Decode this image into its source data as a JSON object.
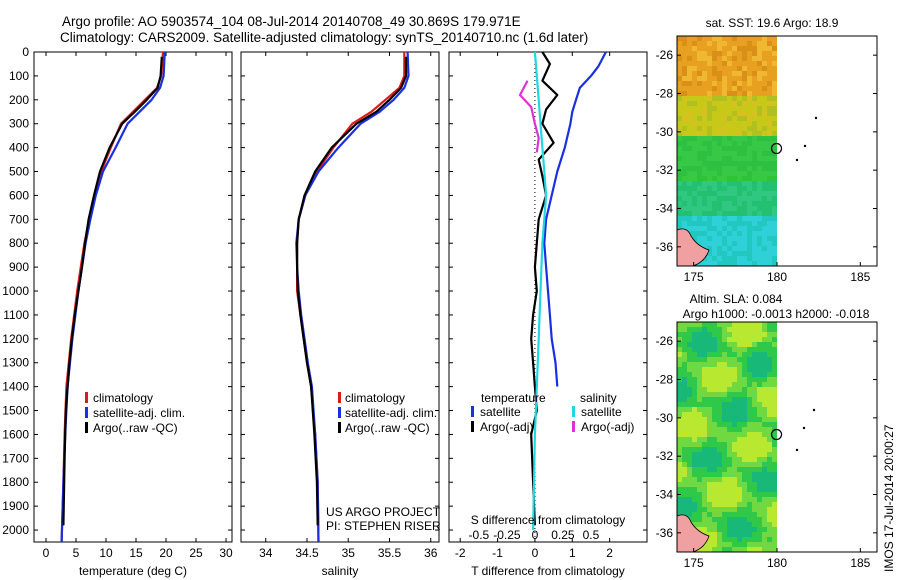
{
  "header": {
    "line1": "Argo profile: AO 5903574_104 08-Jul-2014 20140708_49 30.869S 179.971E",
    "line2": "Climatology: CARS2009. Satellite-adjusted climatology: synTS_20140710.nc (1.6d later)"
  },
  "colors": {
    "clim": "#dd1a1a",
    "sat": "#1a2fe0",
    "argo": "#000000",
    "sat_s": "#20d8e0",
    "argo_s": "#e030d8"
  },
  "credits": {
    "project": "US ARGO PROJECT",
    "pi": "PI: STEPHEN RISER"
  },
  "side_label": "IMOS 17-Jul-2014 20:00:27",
  "chart_data": [
    {
      "type": "line",
      "xlabel": "temperature (deg C)",
      "ylabel": "",
      "xlim": [
        -2,
        31
      ],
      "ylim": [
        2050,
        0
      ],
      "xticks": [
        0,
        5,
        10,
        15,
        20,
        25,
        30
      ],
      "yticks": [
        0,
        100,
        200,
        300,
        400,
        500,
        600,
        700,
        800,
        900,
        1000,
        1100,
        1200,
        1300,
        1400,
        1500,
        1600,
        1700,
        1800,
        1900,
        2000
      ],
      "legend": [
        "climatology",
        "satellite-adj. clim.",
        "Argo(..raw -QC)"
      ],
      "series": [
        {
          "name": "climatology",
          "color": "clim",
          "x": [
            19.5,
            19.2,
            18.5,
            16.5,
            14.5,
            12.5,
            10.8,
            9.2,
            8.1,
            7.2,
            6.4,
            5.8,
            5.2,
            4.7,
            4.2,
            3.8,
            3.4,
            3.1,
            2.9,
            2.6
          ],
          "y": [
            0,
            100,
            150,
            200,
            250,
            300,
            400,
            500,
            600,
            700,
            800,
            900,
            1000,
            1100,
            1200,
            1300,
            1400,
            1600,
            1800,
            2050
          ]
        },
        {
          "name": "satellite-adj. clim.",
          "color": "sat",
          "x": [
            19.8,
            19.6,
            19.0,
            17.6,
            15.6,
            13.6,
            11.6,
            9.5,
            8.3,
            7.4,
            6.6,
            6.0,
            5.4,
            4.9,
            4.4,
            4.0,
            3.6,
            3.2,
            2.9,
            2.6
          ],
          "y": [
            0,
            100,
            150,
            200,
            250,
            300,
            400,
            500,
            600,
            700,
            800,
            900,
            1000,
            1100,
            1200,
            1300,
            1400,
            1600,
            1800,
            2050
          ]
        },
        {
          "name": "Argo(..raw -QC)",
          "color": "argo",
          "x": [
            19.3,
            19.1,
            18.6,
            16.8,
            14.8,
            12.7,
            10.6,
            9.0,
            8.0,
            7.1,
            6.5,
            6.0,
            5.4,
            4.8,
            4.3,
            3.9,
            3.6,
            3.3,
            3.1,
            2.9
          ],
          "y": [
            20,
            100,
            150,
            200,
            250,
            300,
            400,
            500,
            600,
            700,
            800,
            900,
            1000,
            1100,
            1200,
            1300,
            1400,
            1500,
            1700,
            1980
          ]
        }
      ]
    },
    {
      "type": "line",
      "xlabel": "salinity",
      "xlim": [
        33.7,
        36.1
      ],
      "ylim": [
        2050,
        0
      ],
      "xticks": [
        34,
        34.5,
        35,
        35.5,
        36
      ],
      "legend": [
        "climatology",
        "satellite-adj. clim.",
        "Argo(..raw -QC)"
      ],
      "series": [
        {
          "name": "climatology",
          "color": "clim",
          "x": [
            35.68,
            35.68,
            35.62,
            35.45,
            35.28,
            35.05,
            34.82,
            34.62,
            34.48,
            34.4,
            34.38,
            34.38,
            34.38,
            34.42,
            34.46,
            34.5,
            34.55,
            34.6,
            34.63,
            34.64
          ],
          "y": [
            0,
            100,
            150,
            200,
            250,
            300,
            400,
            500,
            600,
            700,
            800,
            900,
            1000,
            1100,
            1200,
            1300,
            1400,
            1600,
            1800,
            2050
          ]
        },
        {
          "name": "satellite-adj. clim.",
          "color": "sat",
          "x": [
            35.72,
            35.73,
            35.68,
            35.55,
            35.38,
            35.15,
            34.88,
            34.64,
            34.48,
            34.4,
            34.37,
            34.38,
            34.4,
            34.43,
            34.47,
            34.51,
            34.56,
            34.6,
            34.63,
            34.64
          ],
          "y": [
            0,
            100,
            150,
            200,
            250,
            300,
            400,
            500,
            600,
            700,
            800,
            900,
            1000,
            1100,
            1200,
            1300,
            1400,
            1600,
            1800,
            2050
          ]
        },
        {
          "name": "Argo(..raw -QC)",
          "color": "argo",
          "x": [
            35.7,
            35.7,
            35.64,
            35.5,
            35.34,
            35.1,
            34.8,
            34.6,
            34.47,
            34.4,
            34.38,
            34.38,
            34.39,
            34.42,
            34.46,
            34.5,
            34.55,
            34.59,
            34.62,
            34.63
          ],
          "y": [
            20,
            100,
            150,
            200,
            250,
            300,
            400,
            500,
            600,
            700,
            800,
            900,
            1000,
            1100,
            1200,
            1300,
            1400,
            1600,
            1800,
            1980
          ]
        }
      ]
    },
    {
      "type": "line",
      "xlabel": "T difference from climatology",
      "xlabel_top": "S difference from climatology",
      "xlim": [
        -2.3,
        3.0
      ],
      "ylim": [
        2050,
        0
      ],
      "xticks": [
        -2,
        -1,
        0,
        1,
        2
      ],
      "xticks_s_labels": [
        "-0.5",
        "-0.25",
        "0",
        "0.25",
        "0.5"
      ],
      "xticks_s_pos": [
        -1.5,
        -0.75,
        0,
        0.75,
        1.5
      ],
      "legend_titles": [
        "temperature",
        "salinity"
      ],
      "legend": [
        "satellite",
        "Argo(-adj)",
        "satellite",
        "Argo(-adj)"
      ],
      "series": [
        {
          "name": "satellite",
          "color": "sat",
          "x": [
            1.9,
            1.7,
            1.5,
            1.2,
            1.1,
            1.0,
            0.95,
            0.8,
            0.6,
            0.45,
            0.3,
            0.25,
            0.3,
            0.35,
            0.4,
            0.45,
            0.55,
            0.6
          ],
          "y": [
            0,
            60,
            100,
            150,
            200,
            250,
            300,
            400,
            500,
            600,
            700,
            800,
            900,
            1000,
            1100,
            1200,
            1300,
            1400
          ]
        },
        {
          "name": "Argo(-adj)",
          "color": "argo",
          "x": [
            0.2,
            0.4,
            0.2,
            0.6,
            0.3,
            0.2,
            0.5,
            0.1,
            0.2,
            0.3,
            0.1,
            0.05,
            0.0,
            0.05,
            -0.05,
            -0.1,
            -0.05,
            0.0,
            0.05,
            -0.1,
            -0.05,
            0.0
          ],
          "y": [
            0,
            50,
            120,
            180,
            240,
            300,
            380,
            450,
            520,
            600,
            700,
            800,
            900,
            1000,
            1100,
            1200,
            1300,
            1400,
            1500,
            1600,
            1800,
            1980
          ]
        },
        {
          "name": "satellite",
          "color": "sat_s",
          "x": [
            0.0,
            0.05,
            0.1,
            0.15,
            0.2,
            0.25,
            0.3,
            0.2,
            0.15,
            0.1,
            0.05,
            0.0,
            -0.05
          ],
          "y": [
            0,
            100,
            200,
            300,
            400,
            500,
            600,
            800,
            1000,
            1200,
            1400,
            1600,
            2000
          ]
        },
        {
          "name": "Argo(-adj)",
          "color": "argo_s",
          "x": [
            -0.2,
            -0.4,
            -0.1,
            0.0,
            0.1,
            0.05
          ],
          "y": [
            120,
            180,
            230,
            300,
            360,
            420
          ]
        }
      ]
    },
    {
      "type": "heatmap",
      "title": "sat. SST: 19.6 Argo: 18.9",
      "xlim": [
        174,
        186
      ],
      "ylim": [
        -37,
        -25
      ],
      "xticks": [
        175,
        180,
        185
      ],
      "yticks": [
        -26,
        -28,
        -30,
        -32,
        -34,
        -36
      ],
      "argo_position": [
        179.971,
        -30.869
      ]
    },
    {
      "type": "heatmap",
      "title": "Altim. SLA: 0.084",
      "subtitle": "Argo h1000: -0.0013 h2000: -0.018",
      "xlim": [
        174,
        186
      ],
      "ylim": [
        -37,
        -25
      ],
      "xticks": [
        175,
        180,
        185
      ],
      "yticks": [
        -26,
        -28,
        -30,
        -32,
        -34,
        -36
      ],
      "argo_position": [
        179.971,
        -30.869
      ]
    }
  ]
}
